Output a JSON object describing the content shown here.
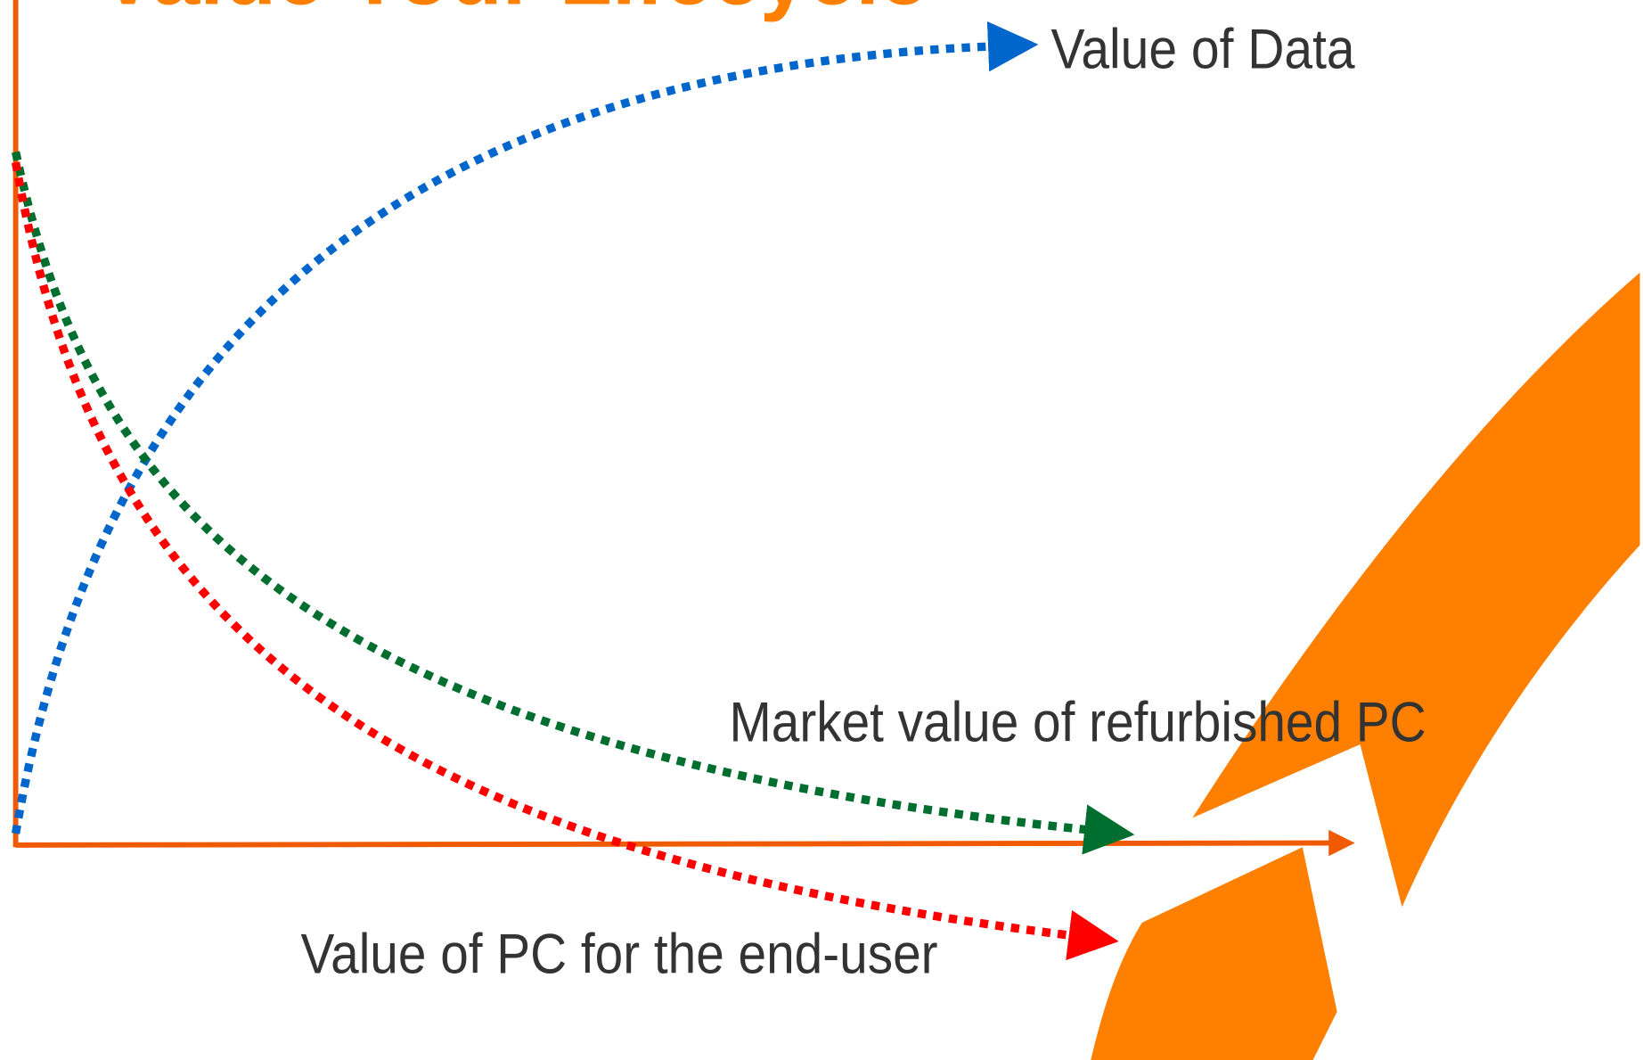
{
  "title": "Value Your Lifecycle",
  "labels": {
    "data": "Value of Data",
    "market": "Market value of refurbished PC",
    "enduser": "Value of PC for the end-user"
  }
}
